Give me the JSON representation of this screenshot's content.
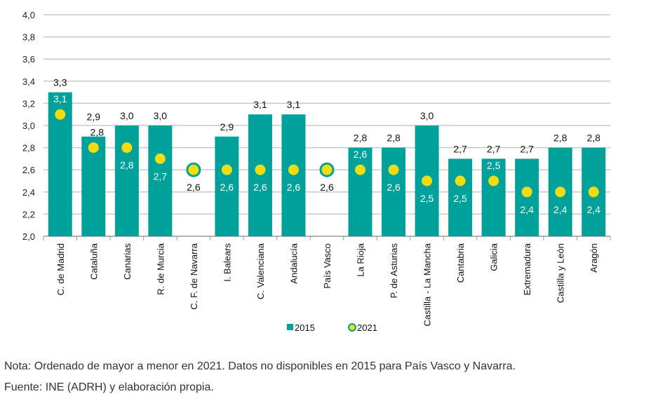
{
  "chart_data": {
    "type": "bar",
    "title": "",
    "xlabel": "",
    "ylabel": "",
    "ylim": [
      2.0,
      4.0
    ],
    "ytick_step": 0.2,
    "yticks": [
      "2,0",
      "2,2",
      "2,4",
      "2,6",
      "2,8",
      "3,0",
      "3,2",
      "3,4",
      "3,6",
      "3,8",
      "4,0"
    ],
    "grid": true,
    "legend_placement": "bottom",
    "categories": [
      "C. de Madrid",
      "Cataluña",
      "Canarias",
      "R. de Murcia",
      "C. F. de Navarra",
      "I. Balears",
      "C. Valenciana",
      "Andalucía",
      "País Vasco",
      "La Rioja",
      "P. de Asturias",
      "Castilla - La Mancha",
      "Cantabria",
      "Galicia",
      "Extremadura",
      "Castilla y León",
      "Aragón"
    ],
    "series": [
      {
        "name": "2015",
        "kind": "bar",
        "color": "#00A19A",
        "values": [
          3.3,
          2.9,
          3.0,
          3.0,
          null,
          2.9,
          3.1,
          3.1,
          null,
          2.8,
          2.8,
          3.0,
          2.7,
          2.7,
          2.7,
          2.8,
          2.8
        ],
        "labels": [
          "3,3",
          "2,9",
          "3,0",
          "3,0",
          null,
          "2,9",
          "3,1",
          "3,1",
          null,
          "2,8",
          "2,8",
          "3,0",
          "2,7",
          "2,7",
          "2,7",
          "2,8",
          "2,8"
        ]
      },
      {
        "name": "2021",
        "kind": "marker",
        "color": "#EEDD10",
        "values": [
          3.1,
          2.8,
          2.8,
          2.7,
          2.6,
          2.6,
          2.6,
          2.6,
          2.6,
          2.6,
          2.6,
          2.5,
          2.5,
          2.5,
          2.4,
          2.4,
          2.4
        ],
        "labels": [
          "3,1",
          "2,8",
          "2,8",
          "2,7",
          "2,6",
          "2,6",
          "2,6",
          "2,6",
          "2,6",
          "2,6",
          "2,6",
          "2,5",
          "2,5",
          "2,5",
          "2,4",
          "2,4",
          "2,4"
        ],
        "label_side": [
          "above",
          "above",
          "below",
          "below",
          "below",
          "below",
          "below",
          "below",
          "below",
          "above",
          "below",
          "below",
          "below",
          "above",
          "below",
          "below",
          "below"
        ]
      }
    ]
  },
  "notes": {
    "nota": "Nota: Ordenado de mayor a menor en 2021. Datos no disponibles en 2015 para País Vasco y Navarra.",
    "fuente": "Fuente: INE (ADRH) y elaboración propia."
  }
}
